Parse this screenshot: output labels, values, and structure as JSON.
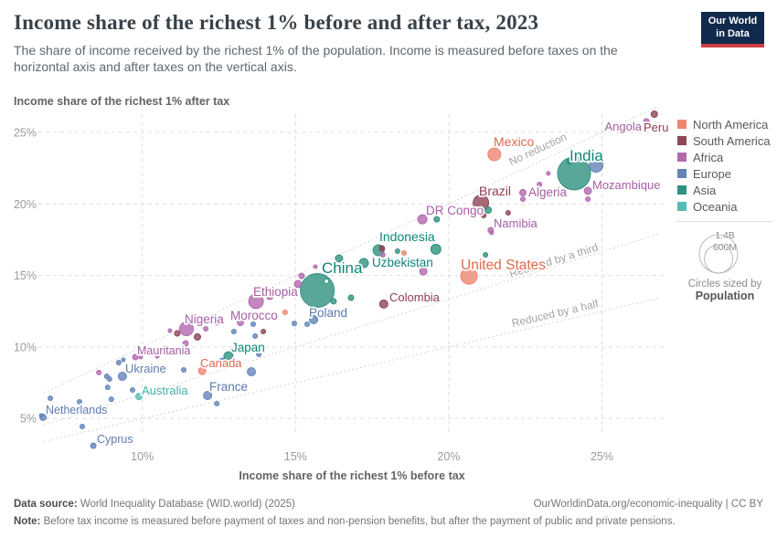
{
  "header": {
    "title": "Income share of the richest 1% before and after tax, 2023",
    "subtitle": "The share of income received by the richest 1% of the population. Income is measured before taxes on the horizontal axis and after taxes on the vertical axis.",
    "logo": {
      "line1": "Our World",
      "line2": "in Data"
    }
  },
  "chart_data": {
    "type": "scatter",
    "title": "Income share of the richest 1% before and after tax, 2023",
    "x_axis": {
      "label": "Income share of the richest 1% before tax",
      "tick_values": [
        10,
        15,
        20,
        25
      ],
      "tick_format": "%",
      "range": [
        6.4,
        27.2
      ]
    },
    "y_axis": {
      "label": "Income share of the richest 1% after tax",
      "tick_values": [
        5,
        10,
        15,
        20,
        25
      ],
      "tick_format": "%",
      "range": [
        2.8,
        26.5
      ]
    },
    "grid": true,
    "reference_lines": [
      {
        "label": "No reduction",
        "factor": 1
      },
      {
        "label": "Reduced by a third",
        "factor": 0.6667
      },
      {
        "label": "Reduced by a half",
        "factor": 0.5
      }
    ],
    "legend": {
      "position": "right",
      "items": [
        {
          "label": "North America",
          "color": "#ED8673"
        },
        {
          "label": "South America",
          "color": "#8E4656"
        },
        {
          "label": "Africa",
          "color": "#B369AE"
        },
        {
          "label": "Europe",
          "color": "#6484B8"
        },
        {
          "label": "Asia",
          "color": "#2F9180"
        },
        {
          "label": "Oceania",
          "color": "#56BAB5"
        }
      ],
      "size_legend": {
        "big": "1.4B",
        "small": "600M",
        "caption": "Circles sized by",
        "caption_bold": "Population"
      }
    },
    "label_colors": {
      "North America": "#E0684F",
      "South America": "#8B3E50",
      "Africa": "#A75CA4",
      "Europe": "#5B7BB0",
      "Asia": "#108579",
      "Oceania": "#41AEA8"
    },
    "points": [
      {
        "name": "Peru",
        "continent": "South America",
        "before": 26.71,
        "after": 26.28,
        "r": 3.5
      },
      {
        "name": "Angola",
        "continent": "Africa",
        "before": 26.45,
        "after": 25.77,
        "r": 3
      },
      {
        "name": "Mexico",
        "continent": "North America",
        "before": 21.49,
        "after": 23.47,
        "r": 7
      },
      {
        "name": "India",
        "continent": "Asia",
        "before": 24.09,
        "after": 22.13,
        "r": 18
      },
      {
        "name": "Mozambique",
        "continent": "Africa",
        "before": 24.54,
        "after": 20.91,
        "r": 4
      },
      {
        "name": "Brazil",
        "continent": "South America",
        "before": 21.05,
        "after": 20.08,
        "r": 8.5
      },
      {
        "name": "Algeria",
        "continent": "Africa",
        "before": 22.42,
        "after": 20.79,
        "r": 3.5
      },
      {
        "name": "DR Congo",
        "continent": "Africa",
        "before": 19.14,
        "after": 18.93,
        "r": 5
      },
      {
        "name": "Namibia",
        "continent": "Africa",
        "before": 21.37,
        "after": 18.17,
        "r": 3
      },
      {
        "name": "Indonesia",
        "continent": "Asia",
        "before": 17.71,
        "after": 16.76,
        "r": 6
      },
      {
        "name": "Uzbekistan",
        "continent": "Asia",
        "before": 17.23,
        "after": 15.87,
        "r": 5
      },
      {
        "name": "United States",
        "continent": "North America",
        "before": 20.66,
        "after": 14.97,
        "r": 9
      },
      {
        "name": "Colombia",
        "continent": "South America",
        "before": 17.88,
        "after": 13.0,
        "r": 4.5
      },
      {
        "name": "China",
        "continent": "Asia",
        "before": 15.71,
        "after": 13.95,
        "r": 18.5
      },
      {
        "name": "Ethiopia",
        "continent": "Africa",
        "before": 13.71,
        "after": 13.19,
        "r": 8
      },
      {
        "name": "Poland",
        "continent": "Europe",
        "before": 15.59,
        "after": 11.91,
        "r": 4.5
      },
      {
        "name": "Nigeria",
        "continent": "Africa",
        "before": 11.44,
        "after": 11.27,
        "r": 7.5
      },
      {
        "name": "Morocco",
        "continent": "Africa",
        "before": 13.2,
        "after": 11.72,
        "r": 3.5
      },
      {
        "name": "Mauritania",
        "continent": "Africa",
        "before": 9.77,
        "after": 9.29,
        "r": 3
      },
      {
        "name": "Japan",
        "continent": "Asia",
        "before": 12.81,
        "after": 9.35,
        "r": 5
      },
      {
        "name": "Canada",
        "continent": "North America",
        "before": 11.95,
        "after": 8.33,
        "r": 4
      },
      {
        "name": "Ukraine",
        "continent": "Europe",
        "before": 9.35,
        "after": 7.95,
        "r": 4.5
      },
      {
        "name": "Australia",
        "continent": "Oceania",
        "before": 9.89,
        "after": 6.54,
        "r": 3.5
      },
      {
        "name": "France",
        "continent": "Europe",
        "before": 12.13,
        "after": 6.61,
        "r": 4.5
      },
      {
        "name": "Netherlands",
        "continent": "Europe",
        "before": 6.76,
        "after": 5.08,
        "r": 3.5
      },
      {
        "name": "Cyprus",
        "continent": "Europe",
        "before": 8.4,
        "after": 3.1,
        "r": 3
      },
      {
        "continent": "Asia",
        "before": 21.29,
        "after": 19.57,
        "r": 3.5
      },
      {
        "continent": "South America",
        "before": 21.14,
        "after": 19.19,
        "r": 2.5
      },
      {
        "continent": "South America",
        "before": 21.94,
        "after": 19.38,
        "r": 2.5
      },
      {
        "continent": "Africa",
        "before": 21.4,
        "after": 17.98,
        "r": 2
      },
      {
        "continent": "Africa",
        "before": 22.42,
        "after": 20.34,
        "r": 2.5
      },
      {
        "continent": "Africa",
        "before": 22.96,
        "after": 21.36,
        "r": 2.5
      },
      {
        "continent": "Africa",
        "before": 23.25,
        "after": 22.13,
        "r": 2
      },
      {
        "continent": "Asia",
        "before": 23.94,
        "after": 22.96,
        "r": 3
      },
      {
        "continent": "Europe",
        "before": 24.81,
        "after": 22.7,
        "r": 7.5
      },
      {
        "continent": "Africa",
        "before": 24.54,
        "after": 20.34,
        "r": 2.5
      },
      {
        "continent": "Asia",
        "before": 19.61,
        "after": 18.93,
        "r": 3
      },
      {
        "continent": "Asia",
        "before": 21.2,
        "after": 16.44,
        "r": 2.5
      },
      {
        "continent": "South America",
        "before": 17.82,
        "after": 16.89,
        "r": 3
      },
      {
        "continent": "Africa",
        "before": 17.85,
        "after": 16.44,
        "r": 2.5
      },
      {
        "continent": "Asia",
        "before": 18.33,
        "after": 16.7,
        "r": 2.5
      },
      {
        "continent": "North America",
        "before": 18.54,
        "after": 16.57,
        "r": 2.5
      },
      {
        "continent": "Asia",
        "before": 19.58,
        "after": 16.83,
        "r": 5.5
      },
      {
        "continent": "Africa",
        "before": 19.17,
        "after": 15.29,
        "r": 4
      },
      {
        "continent": "Africa",
        "before": 15.65,
        "after": 15.61,
        "r": 2
      },
      {
        "continent": "Asia",
        "before": 16.42,
        "after": 16.19,
        "r": 4
      },
      {
        "continent": "Africa",
        "before": 15.2,
        "after": 14.97,
        "r": 3
      },
      {
        "continent": "Africa",
        "before": 15.08,
        "after": 14.4,
        "r": 4
      },
      {
        "continent": "Africa",
        "before": 14.84,
        "after": 13.95,
        "r": 2.5
      },
      {
        "continent": "Asia",
        "before": 16.01,
        "after": 14.59,
        "r": 2.5,
        "ring": true
      },
      {
        "continent": "Asia",
        "before": 16.24,
        "after": 13.19,
        "r": 3
      },
      {
        "continent": "Asia",
        "before": 16.81,
        "after": 13.44,
        "r": 3
      },
      {
        "continent": "Africa",
        "before": 14.16,
        "after": 13.57,
        "r": 4
      },
      {
        "continent": "Africa",
        "before": 14.48,
        "after": 13.7,
        "r": 2.5
      },
      {
        "continent": "North America",
        "before": 14.66,
        "after": 12.42,
        "r": 2.5
      },
      {
        "continent": "Europe",
        "before": 14.96,
        "after": 11.65,
        "r": 2.5
      },
      {
        "continent": "Asia",
        "before": 16.04,
        "after": 12.48,
        "r": 3
      },
      {
        "continent": "Europe",
        "before": 15.38,
        "after": 11.59,
        "r": 2.5
      },
      {
        "continent": "Africa",
        "before": 12.43,
        "after": 11.78,
        "r": 4
      },
      {
        "continent": "Africa",
        "before": 12.07,
        "after": 11.27,
        "r": 2.5
      },
      {
        "continent": "South America",
        "before": 11.8,
        "after": 10.7,
        "r": 3.5
      },
      {
        "continent": "South America",
        "before": 11.14,
        "after": 10.95,
        "r": 3
      },
      {
        "continent": "Africa",
        "before": 10.9,
        "after": 11.14,
        "r": 2
      },
      {
        "continent": "Europe",
        "before": 12.99,
        "after": 11.08,
        "r": 2.5
      },
      {
        "continent": "Europe",
        "before": 13.62,
        "after": 11.59,
        "r": 2.5
      },
      {
        "continent": "Europe",
        "before": 13.68,
        "after": 10.76,
        "r": 2.5
      },
      {
        "continent": "South America",
        "before": 13.95,
        "after": 11.08,
        "r": 2.5
      },
      {
        "continent": "Africa",
        "before": 11.41,
        "after": 10.25,
        "r": 3
      },
      {
        "continent": "Africa",
        "before": 10.49,
        "after": 9.35,
        "r": 2
      },
      {
        "continent": "Africa",
        "before": 9.95,
        "after": 9.29,
        "r": 2
      },
      {
        "continent": "Europe",
        "before": 12.6,
        "after": 9.03,
        "r": 3
      },
      {
        "continent": "Europe",
        "before": 13.56,
        "after": 8.27,
        "r": 4.5
      },
      {
        "continent": "Europe",
        "before": 13.8,
        "after": 9.48,
        "r": 2.5
      },
      {
        "continent": "Europe",
        "before": 11.35,
        "after": 8.4,
        "r": 2.5
      },
      {
        "continent": "Europe",
        "before": 12.43,
        "after": 6.04,
        "r": 2.5
      },
      {
        "continent": "Africa",
        "before": 8.58,
        "after": 8.21,
        "r": 2.5
      },
      {
        "continent": "Europe",
        "before": 8.84,
        "after": 7.95,
        "r": 2.5
      },
      {
        "continent": "Europe",
        "before": 8.93,
        "after": 7.76,
        "r": 2.5
      },
      {
        "continent": "Europe",
        "before": 8.87,
        "after": 7.18,
        "r": 2.5
      },
      {
        "continent": "Europe",
        "before": 8.99,
        "after": 6.35,
        "r": 2.5
      },
      {
        "continent": "Europe",
        "before": 9.23,
        "after": 8.91,
        "r": 2.5
      },
      {
        "continent": "Europe",
        "before": 9.38,
        "after": 9.1,
        "r": 2
      },
      {
        "continent": "Europe",
        "before": 9.68,
        "after": 6.99,
        "r": 2.5
      },
      {
        "continent": "Europe",
        "before": 7.0,
        "after": 6.42,
        "r": 2.5
      },
      {
        "continent": "Europe",
        "before": 7.95,
        "after": 6.16,
        "r": 2.5
      },
      {
        "continent": "Europe",
        "before": 8.04,
        "after": 4.44,
        "r": 2.5
      },
      {
        "continent": "Europe",
        "before": 6.7,
        "after": 5.21,
        "r": 2
      }
    ]
  },
  "footer": {
    "datasource_label": "Data source:",
    "datasource_value": " World Inequality Database (WID.world) (2025)",
    "link": "OurWorldinData.org/economic-inequality | CC BY",
    "note_label": "Note:",
    "note_text": " Before tax income is measured before payment of taxes and non-pension benefits, but after the payment of public and private pensions."
  }
}
